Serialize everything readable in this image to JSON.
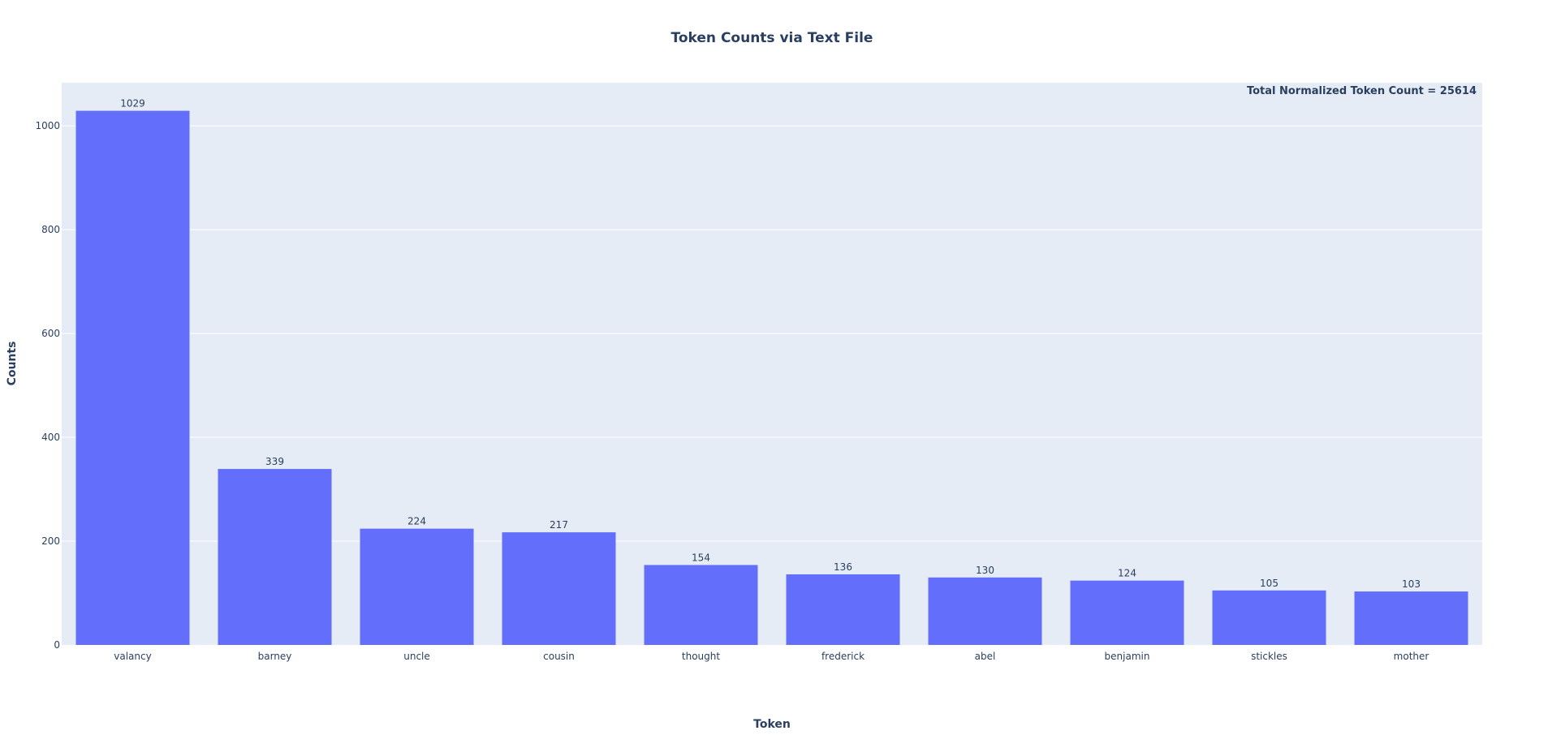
{
  "chart_data": {
    "type": "bar",
    "title": "Token Counts via Text File",
    "xlabel": "Token",
    "ylabel": "Counts",
    "annotation": "Total Normalized Token Count = 25614",
    "categories": [
      "valancy",
      "barney",
      "uncle",
      "cousin",
      "thought",
      "frederick",
      "abel",
      "benjamin",
      "stickles",
      "mother"
    ],
    "values": [
      1029,
      339,
      224,
      217,
      154,
      136,
      130,
      124,
      105,
      103
    ],
    "ylim": [
      0,
      1083
    ],
    "yticks": [
      0,
      200,
      400,
      600,
      800,
      1000
    ],
    "grid": true,
    "bar_color": "#636efa",
    "plot_bg": "#e5ecf6",
    "text_color": "#2a3f5f"
  }
}
